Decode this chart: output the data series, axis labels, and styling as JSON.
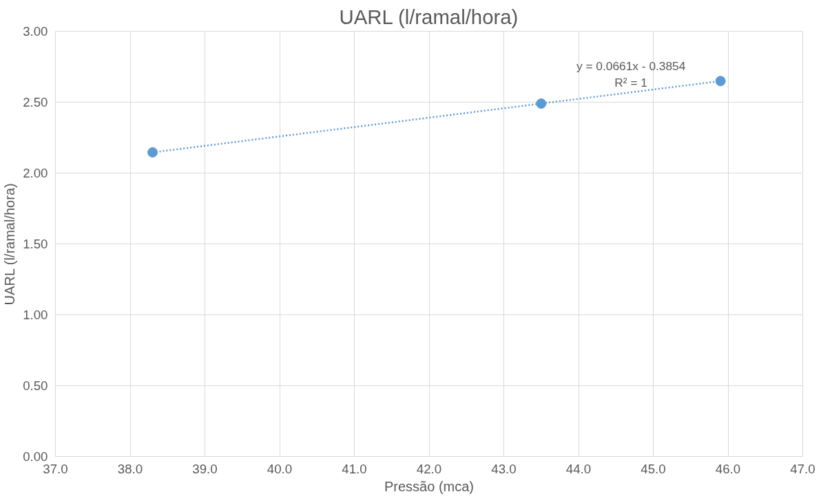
{
  "chart_data": {
    "type": "scatter",
    "title": "UARL (l/ramal/hora)",
    "xlabel": "Pressão (mca)",
    "ylabel": "UARL (l/ramal/hora)",
    "x": [
      38.3,
      43.5,
      45.9
    ],
    "series": [
      {
        "color": "#5b9bd5",
        "values": [
          2.146,
          2.49,
          2.649
        ],
        "marker": "circle"
      },
      {
        "type": "line",
        "color": "#5b9bd5",
        "x": [
          38.3,
          45.9
        ],
        "values": [
          2.146,
          2.649
        ],
        "line_style": "dotted",
        "marker": "none"
      }
    ],
    "annotations": [
      "y = 0.0661x - 0.3854",
      "R² = 1"
    ],
    "xlim": [
      37,
      47
    ],
    "xticks": [
      {
        "value": 37,
        "label": "37.0"
      },
      {
        "value": 38,
        "label": "38.0"
      },
      {
        "value": 39,
        "label": "39.0"
      },
      {
        "value": 40,
        "label": "40.0"
      },
      {
        "value": 41,
        "label": "41.0"
      },
      {
        "value": 42,
        "label": "42.0"
      },
      {
        "value": 43,
        "label": "43.0"
      },
      {
        "value": 44,
        "label": "44.0"
      },
      {
        "value": 45,
        "label": "45.0"
      },
      {
        "value": 46,
        "label": "46.0"
      },
      {
        "value": 47,
        "label": "47.0"
      }
    ],
    "ylim": [
      0,
      3
    ],
    "yticks": [
      {
        "value": 0,
        "label": "0.00"
      },
      {
        "value": 0.5,
        "label": "0.50"
      },
      {
        "value": 1,
        "label": "1.00"
      },
      {
        "value": 1.5,
        "label": "1.50"
      },
      {
        "value": 2,
        "label": "2.00"
      },
      {
        "value": 2.5,
        "label": "2.50"
      },
      {
        "value": 3,
        "label": "3.00"
      }
    ],
    "grid": true
  }
}
